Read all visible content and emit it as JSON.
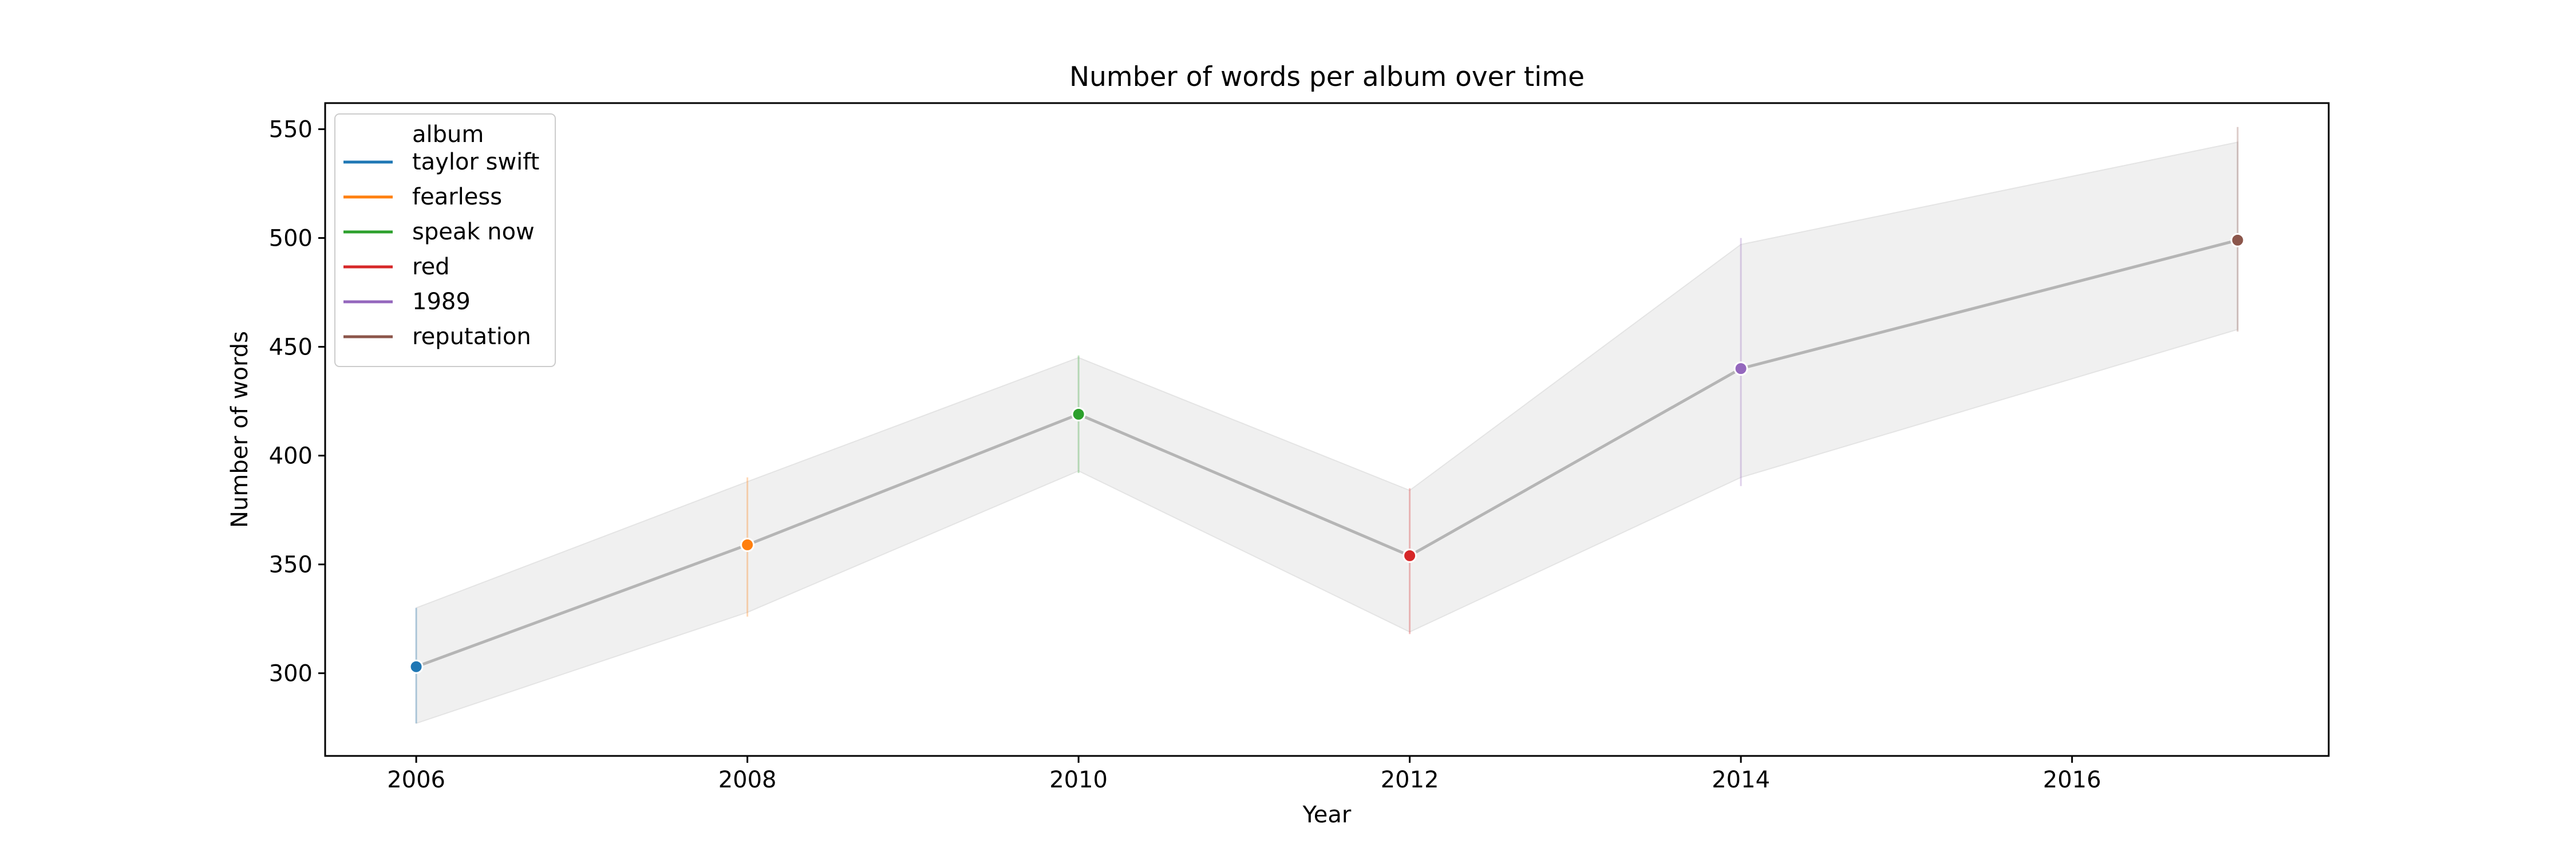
{
  "chart_data": {
    "type": "line",
    "title": "Number of words per album over time",
    "xlabel": "Year",
    "ylabel": "Number of words",
    "xlim": [
      2005.45,
      2017.55
    ],
    "ylim": [
      262,
      562
    ],
    "xticks": [
      2006,
      2008,
      2010,
      2012,
      2014,
      2016
    ],
    "yticks": [
      300,
      350,
      400,
      450,
      500,
      550
    ],
    "grid": false,
    "legend_position": "top-left",
    "legend_title": "album",
    "line_color": "#b5b5b5",
    "band_color": "#f0f0f0",
    "band": {
      "x": [
        2006,
        2008,
        2010,
        2012,
        2014,
        2017
      ],
      "low": [
        277,
        328,
        393,
        319,
        390,
        458
      ],
      "high": [
        330,
        388,
        445,
        384,
        497,
        544
      ]
    },
    "series": [
      {
        "name": "taylor swift",
        "color": "#1f77b4",
        "x": 2006,
        "y": 303,
        "ci": [
          277,
          330
        ]
      },
      {
        "name": "fearless",
        "color": "#ff7f0e",
        "x": 2008,
        "y": 359,
        "ci": [
          326,
          390
        ]
      },
      {
        "name": "speak now",
        "color": "#2ca02c",
        "x": 2010,
        "y": 419,
        "ci": [
          392,
          446
        ]
      },
      {
        "name": "red",
        "color": "#d62728",
        "x": 2012,
        "y": 354,
        "ci": [
          318,
          385
        ]
      },
      {
        "name": "1989",
        "color": "#9467bd",
        "x": 2014,
        "y": 440,
        "ci": [
          386,
          500
        ]
      },
      {
        "name": "reputation",
        "color": "#8c564b",
        "x": 2017,
        "y": 499,
        "ci": [
          457,
          551
        ]
      }
    ]
  }
}
